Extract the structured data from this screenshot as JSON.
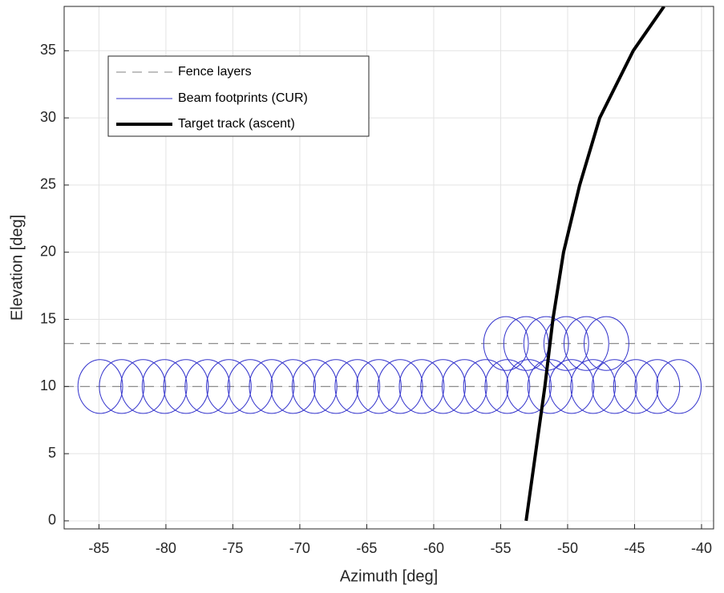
{
  "chart_data": {
    "type": "beam-layout",
    "xlabel": "Azimuth [deg]",
    "ylabel": "Elevation [deg]",
    "xlim": [
      -87.6,
      -39.1
    ],
    "ylim": [
      -0.6,
      38.3
    ],
    "xticks": [
      -85,
      -80,
      -75,
      -70,
      -65,
      -60,
      -55,
      -50,
      -45,
      -40
    ],
    "yticks": [
      0,
      5,
      10,
      15,
      20,
      25,
      30,
      35
    ],
    "grid": true,
    "legend": "upper left",
    "fence": {
      "name": "Fence layers",
      "color": "#808080",
      "elevations": [
        10,
        13.2
      ]
    },
    "beams": {
      "name": "Beam footprints (CUR)",
      "color": "#3333cc",
      "semi_az": 1.67,
      "semi_el": 2,
      "x": [
        -84.9,
        -83.3,
        -81.7,
        -80.1,
        -78.5,
        -76.9,
        -75.3,
        -73.7,
        -72.1,
        -70.5,
        -68.9,
        -67.3,
        -65.7,
        -64.1,
        -62.5,
        -60.9,
        -59.3,
        -57.7,
        -56.1,
        -54.5,
        -52.9,
        -51.3,
        -49.7,
        -48.1,
        -46.5,
        -44.9,
        -43.3,
        -41.7,
        -54.6,
        -53.1,
        -51.6,
        -50.1,
        -48.6,
        -47.1
      ],
      "y": [
        10,
        10,
        10,
        10,
        10,
        10,
        10,
        10,
        10,
        10,
        10,
        10,
        10,
        10,
        10,
        10,
        10,
        10,
        10,
        10,
        10,
        10,
        10,
        10,
        10,
        10,
        10,
        10,
        13.2,
        13.2,
        13.2,
        13.2,
        13.2,
        13.2
      ]
    },
    "track": {
      "name": "Target track (ascent)",
      "color": "#000000",
      "x": [
        -53.1,
        -52.4,
        -51.7,
        -51.1,
        -50.3,
        -49.1,
        -47.6,
        -45.1,
        -42.8
      ],
      "y": [
        0,
        5,
        10,
        15,
        20,
        25,
        30,
        35,
        38.3
      ]
    }
  }
}
